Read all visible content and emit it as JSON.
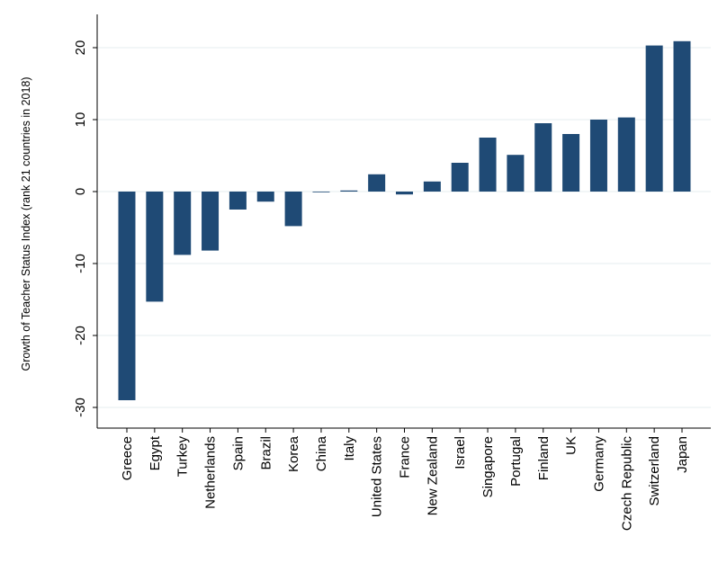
{
  "chart_data": {
    "type": "bar",
    "title": "",
    "xlabel": "",
    "ylabel": "Growth of Teacher Status Index (rank 21 countries in 2018)",
    "ylim": [
      -31,
      22
    ],
    "yticks": [
      20,
      10,
      0,
      -10,
      -20,
      -30
    ],
    "ytick_labels": [
      "20",
      "10",
      "0",
      "-10",
      "-20",
      "-30"
    ],
    "grid": true,
    "bar_color": "#1f4a75",
    "categories": [
      "Greece",
      "Egypt",
      "Turkey",
      "Netherlands",
      "Spain",
      "Brazil",
      "Korea",
      "China",
      "Italy",
      "United States",
      "France",
      "New Zealand",
      "Israel",
      "Singapore",
      "Portugal",
      "Finland",
      "UK",
      "Germany",
      "Czech Republic",
      "Switzerland",
      "Japan"
    ],
    "values": [
      -29.0,
      -15.3,
      -8.8,
      -8.2,
      -2.5,
      -1.4,
      -4.8,
      0.0,
      0.15,
      2.4,
      -0.4,
      1.4,
      4.0,
      7.5,
      5.1,
      9.5,
      8.0,
      10.0,
      10.3,
      20.3,
      20.9
    ]
  }
}
